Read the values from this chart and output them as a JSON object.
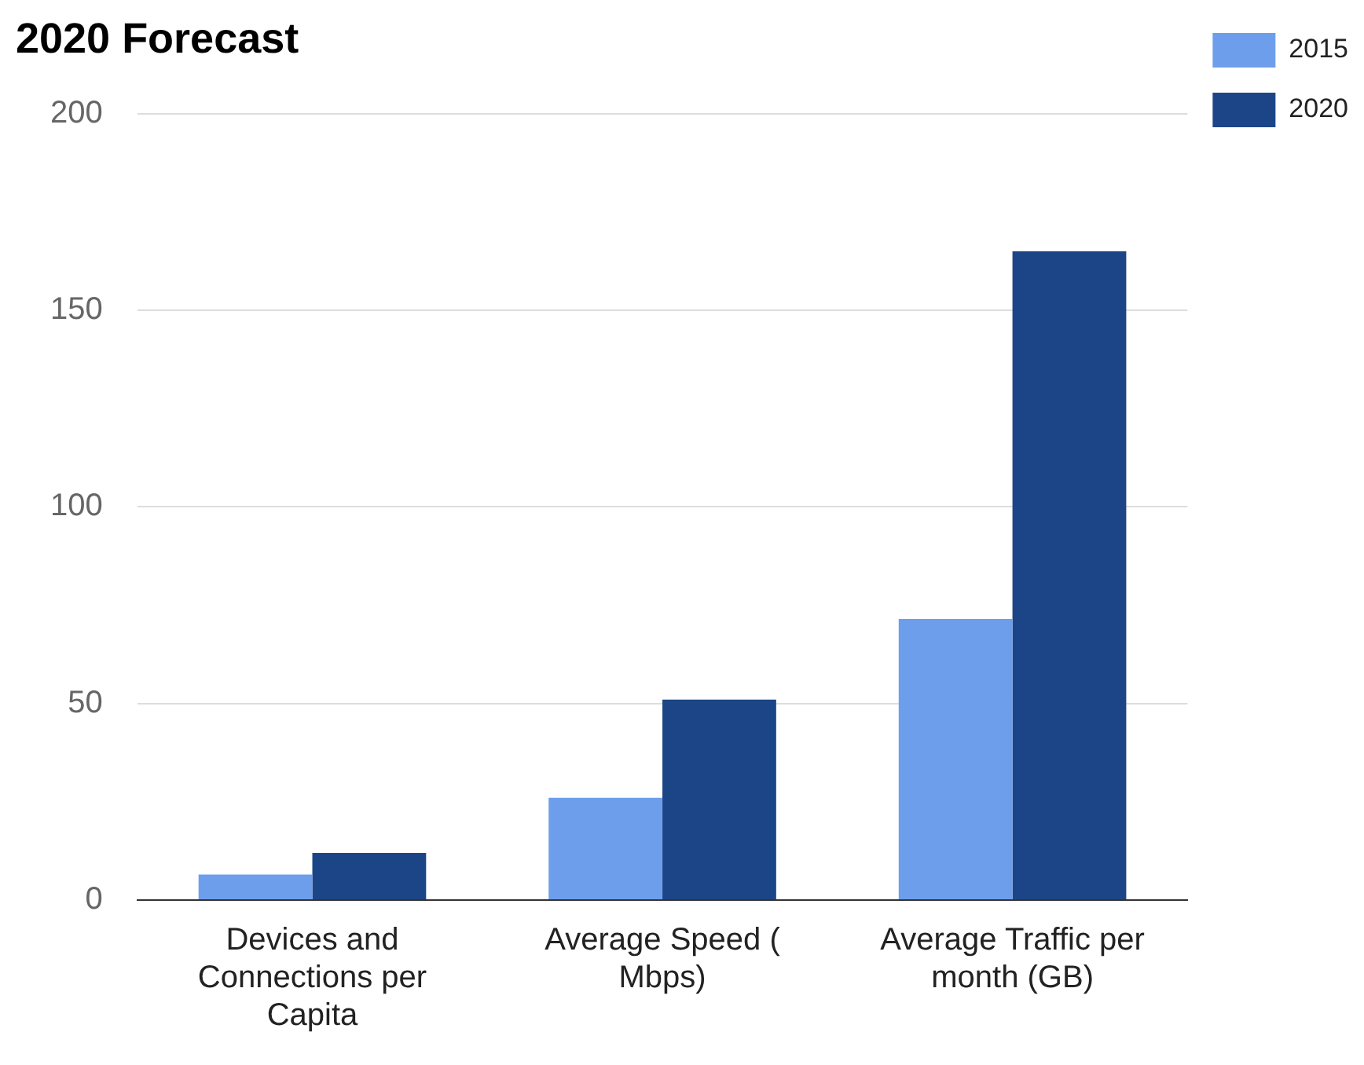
{
  "chart_data": {
    "type": "bar",
    "title": "2020 Forecast",
    "categories": [
      "Devices and Connections per Capita",
      "Average Speed ( Mbps)",
      "Average Traffic per month (GB)"
    ],
    "series": [
      {
        "name": "2015",
        "color": "#6d9eeb",
        "values": [
          6.5,
          26,
          71.5
        ]
      },
      {
        "name": "2020",
        "color": "#1c4587",
        "values": [
          12,
          51,
          165
        ]
      }
    ],
    "ylim": [
      0,
      200
    ],
    "yticks": [
      0,
      50,
      100,
      150,
      200
    ],
    "grid": "y",
    "legend": "top right"
  }
}
